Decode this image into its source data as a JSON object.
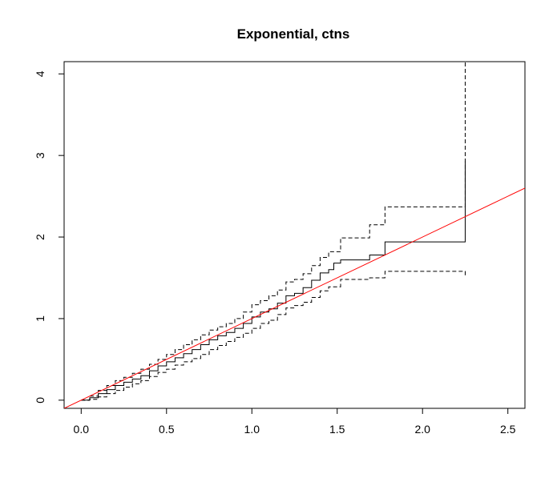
{
  "chart_data": {
    "type": "line",
    "title": "Exponential, ctns",
    "xlabel": "",
    "ylabel": "",
    "xlim": [
      -0.1,
      2.6
    ],
    "ylim": [
      -0.1,
      4.15
    ],
    "x_ticks": [
      "0.0",
      "0.5",
      "1.0",
      "1.5",
      "2.0",
      "2.5"
    ],
    "y_ticks": [
      "0",
      "1",
      "2",
      "3",
      "4"
    ],
    "grid": false,
    "series": [
      {
        "style": "solid",
        "color": "#000000",
        "step": true,
        "points": [
          [
            0.0,
            0.0
          ],
          [
            0.05,
            0.03
          ],
          [
            0.1,
            0.08
          ],
          [
            0.15,
            0.13
          ],
          [
            0.2,
            0.18
          ],
          [
            0.25,
            0.22
          ],
          [
            0.3,
            0.26
          ],
          [
            0.35,
            0.3
          ],
          [
            0.4,
            0.36
          ],
          [
            0.45,
            0.42
          ],
          [
            0.5,
            0.47
          ],
          [
            0.55,
            0.52
          ],
          [
            0.6,
            0.57
          ],
          [
            0.65,
            0.62
          ],
          [
            0.7,
            0.68
          ],
          [
            0.75,
            0.74
          ],
          [
            0.8,
            0.79
          ],
          [
            0.85,
            0.83
          ],
          [
            0.9,
            0.88
          ],
          [
            0.95,
            0.94
          ],
          [
            1.0,
            1.02
          ],
          [
            1.05,
            1.08
          ],
          [
            1.1,
            1.12
          ],
          [
            1.15,
            1.19
          ],
          [
            1.2,
            1.28
          ],
          [
            1.25,
            1.31
          ],
          [
            1.3,
            1.38
          ],
          [
            1.35,
            1.47
          ],
          [
            1.4,
            1.56
          ],
          [
            1.45,
            1.6
          ],
          [
            1.48,
            1.68
          ],
          [
            1.52,
            1.72
          ],
          [
            1.69,
            1.78
          ],
          [
            1.78,
            1.94
          ],
          [
            2.25,
            1.94
          ],
          [
            2.25,
            2.93
          ]
        ]
      },
      {
        "style": "dashed",
        "color": "#000000",
        "step": true,
        "points": [
          [
            0.0,
            0.0
          ],
          [
            0.05,
            0.05
          ],
          [
            0.1,
            0.12
          ],
          [
            0.15,
            0.18
          ],
          [
            0.2,
            0.24
          ],
          [
            0.25,
            0.28
          ],
          [
            0.3,
            0.33
          ],
          [
            0.35,
            0.38
          ],
          [
            0.4,
            0.44
          ],
          [
            0.45,
            0.5
          ],
          [
            0.5,
            0.56
          ],
          [
            0.55,
            0.62
          ],
          [
            0.6,
            0.68
          ],
          [
            0.65,
            0.74
          ],
          [
            0.7,
            0.8
          ],
          [
            0.75,
            0.86
          ],
          [
            0.8,
            0.9
          ],
          [
            0.85,
            0.94
          ],
          [
            0.9,
            1.0
          ],
          [
            0.95,
            1.08
          ],
          [
            1.0,
            1.17
          ],
          [
            1.05,
            1.22
          ],
          [
            1.1,
            1.28
          ],
          [
            1.15,
            1.35
          ],
          [
            1.2,
            1.45
          ],
          [
            1.25,
            1.48
          ],
          [
            1.3,
            1.55
          ],
          [
            1.35,
            1.65
          ],
          [
            1.4,
            1.75
          ],
          [
            1.45,
            1.82
          ],
          [
            1.52,
            1.99
          ],
          [
            1.69,
            2.15
          ],
          [
            1.78,
            2.37
          ],
          [
            2.25,
            2.37
          ],
          [
            2.25,
            4.15
          ]
        ]
      },
      {
        "style": "dashed",
        "color": "#000000",
        "step": true,
        "points": [
          [
            0.0,
            0.0
          ],
          [
            0.05,
            0.01
          ],
          [
            0.1,
            0.04
          ],
          [
            0.15,
            0.08
          ],
          [
            0.2,
            0.12
          ],
          [
            0.25,
            0.16
          ],
          [
            0.3,
            0.2
          ],
          [
            0.35,
            0.24
          ],
          [
            0.4,
            0.29
          ],
          [
            0.45,
            0.34
          ],
          [
            0.5,
            0.38
          ],
          [
            0.55,
            0.43
          ],
          [
            0.6,
            0.47
          ],
          [
            0.65,
            0.51
          ],
          [
            0.7,
            0.56
          ],
          [
            0.75,
            0.62
          ],
          [
            0.8,
            0.67
          ],
          [
            0.85,
            0.72
          ],
          [
            0.9,
            0.77
          ],
          [
            0.95,
            0.82
          ],
          [
            1.0,
            0.88
          ],
          [
            1.05,
            0.94
          ],
          [
            1.1,
            0.98
          ],
          [
            1.15,
            1.05
          ],
          [
            1.2,
            1.13
          ],
          [
            1.25,
            1.16
          ],
          [
            1.3,
            1.2
          ],
          [
            1.35,
            1.26
          ],
          [
            1.4,
            1.34
          ],
          [
            1.45,
            1.39
          ],
          [
            1.52,
            1.48
          ],
          [
            1.69,
            1.5
          ],
          [
            1.78,
            1.58
          ],
          [
            2.25,
            1.58
          ],
          [
            2.25,
            1.53
          ]
        ]
      },
      {
        "style": "solid",
        "color": "#ff0000",
        "step": false,
        "points": [
          [
            -0.1,
            -0.1
          ],
          [
            2.6,
            2.6
          ]
        ]
      }
    ]
  }
}
